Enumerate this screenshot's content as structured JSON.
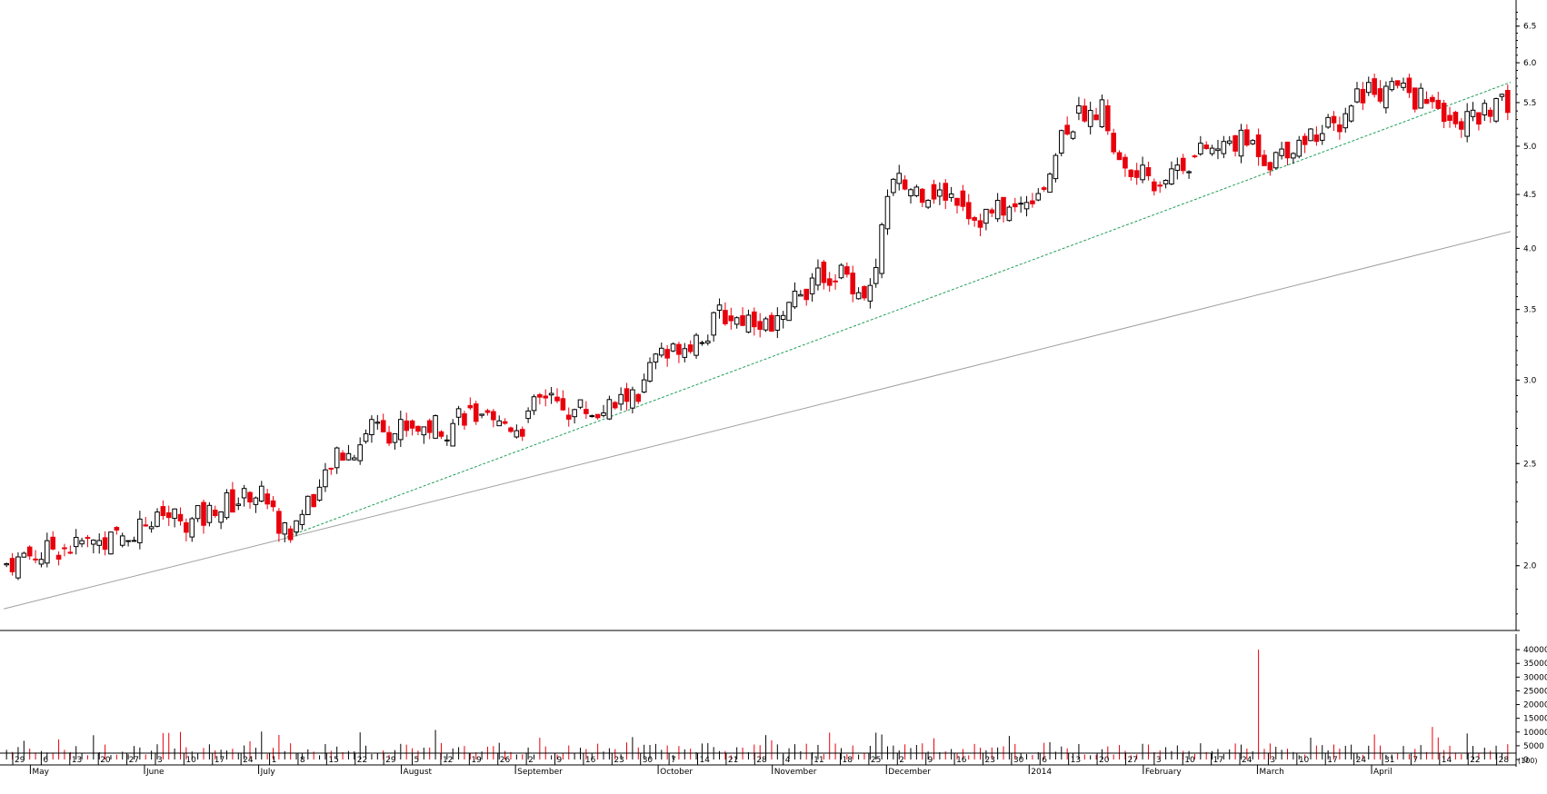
{
  "chart_data": {
    "type": "candlestick",
    "price_axis": {
      "scale": "log",
      "range": [
        1.75,
        6.8
      ],
      "tick_labels": [
        "2.0",
        "2.5",
        "3.0",
        "3.5",
        "4.0",
        "4.5",
        "5.0",
        "5.5",
        "6.0",
        "6.5"
      ],
      "tick_values": [
        2.0,
        2.5,
        3.0,
        3.5,
        4.0,
        4.5,
        5.0,
        5.5,
        6.0,
        6.5
      ]
    },
    "volume_axis": {
      "range": [
        0,
        45000
      ],
      "tick_labels": [
        "0",
        "5000",
        "10000",
        "15000",
        "20000",
        "25000",
        "30000",
        "35000",
        "40000"
      ],
      "tick_values": [
        0,
        5000,
        10000,
        15000,
        20000,
        25000,
        30000,
        35000,
        40000
      ]
    },
    "x_axis": {
      "day_labels": [
        "29",
        "6",
        "13",
        "20",
        "27",
        "3",
        "10",
        "17",
        "24",
        "1",
        "8",
        "15",
        "22",
        "29",
        "5",
        "12",
        "19",
        "26",
        "2",
        "9",
        "16",
        "23",
        "30",
        "7",
        "14",
        "21",
        "28",
        "4",
        "11",
        "18",
        "25",
        "2",
        "9",
        "16",
        "23",
        "30",
        "6",
        "13",
        "20",
        "27",
        "3",
        "10",
        "17",
        "24",
        "3",
        "10",
        "17",
        "24",
        "31",
        "7",
        "14",
        "22",
        "28"
      ],
      "month_labels": [
        "May",
        "June",
        "July",
        "August",
        "September",
        "October",
        "November",
        "December",
        "2014",
        "February",
        "March",
        "April"
      ],
      "corner_label": "(100)"
    },
    "trendlines": [
      {
        "style": "solid-gray",
        "start": {
          "date": "2013-04-26",
          "price": 1.82
        },
        "end": {
          "date": "2014-04-28",
          "price": 4.15
        }
      },
      {
        "style": "dashed-green",
        "start": {
          "date": "2013-07-04",
          "price": 2.13
        },
        "end": {
          "date": "2014-04-28",
          "price": 5.75
        }
      }
    ],
    "colors": {
      "up": "#000000",
      "down": "#e8000c",
      "trend_solid": "#a0a0a0",
      "trend_dashed": "#1f9f58",
      "vol_up": "#000000",
      "vol_down": "#e8000c"
    },
    "weekly_close": [
      {
        "week": "Apr 29",
        "close": 2.05
      },
      {
        "week": "May 6",
        "close": 2.08
      },
      {
        "week": "May 13",
        "close": 2.1
      },
      {
        "week": "May 20",
        "close": 2.12
      },
      {
        "week": "May 27",
        "close": 2.2
      },
      {
        "week": "Jun 3",
        "close": 2.22
      },
      {
        "week": "Jun 10",
        "close": 2.22
      },
      {
        "week": "Jun 17",
        "close": 2.3
      },
      {
        "week": "Jun 24",
        "close": 2.35
      },
      {
        "week": "Jul 1",
        "close": 2.15
      },
      {
        "week": "Jul 8",
        "close": 2.35
      },
      {
        "week": "Jul 15",
        "close": 2.55
      },
      {
        "week": "Jul 22",
        "close": 2.75
      },
      {
        "week": "Jul 29",
        "close": 2.72
      },
      {
        "week": "Aug 5",
        "close": 2.72
      },
      {
        "week": "Aug 12",
        "close": 2.8
      },
      {
        "week": "Aug 19",
        "close": 2.7
      },
      {
        "week": "Aug 26",
        "close": 2.72
      },
      {
        "week": "Sep 2",
        "close": 2.85
      },
      {
        "week": "Sep 9",
        "close": 2.82
      },
      {
        "week": "Sep 16",
        "close": 2.82
      },
      {
        "week": "Sep 23",
        "close": 2.9
      },
      {
        "week": "Sep 30",
        "close": 3.15
      },
      {
        "week": "Oct 7",
        "close": 3.3
      },
      {
        "week": "Oct 14",
        "close": 3.45
      },
      {
        "week": "Oct 21",
        "close": 3.45
      },
      {
        "week": "Oct 28",
        "close": 3.4
      },
      {
        "week": "Nov 4",
        "close": 3.7
      },
      {
        "week": "Nov 11",
        "close": 3.8
      },
      {
        "week": "Nov 18",
        "close": 3.65
      },
      {
        "week": "Nov 25",
        "close": 4.6
      },
      {
        "week": "Dec 2",
        "close": 4.55
      },
      {
        "week": "Dec 9",
        "close": 4.5
      },
      {
        "week": "Dec 16",
        "close": 4.3
      },
      {
        "week": "Dec 23",
        "close": 4.35
      },
      {
        "week": "Dec 30",
        "close": 4.6
      },
      {
        "week": "Jan 6",
        "close": 5.3
      },
      {
        "week": "Jan 13",
        "close": 5.4
      },
      {
        "week": "Jan 20",
        "close": 4.7
      },
      {
        "week": "Jan 27",
        "close": 4.65
      },
      {
        "week": "Feb 3",
        "close": 4.85
      },
      {
        "week": "Feb 10",
        "close": 4.95
      },
      {
        "week": "Feb 17",
        "close": 5.05
      },
      {
        "week": "Feb 24",
        "close": 4.9
      },
      {
        "week": "Mar 3",
        "close": 5.1
      },
      {
        "week": "Mar 10",
        "close": 5.2
      },
      {
        "week": "Mar 17",
        "close": 5.65
      },
      {
        "week": "Mar 24",
        "close": 5.7
      },
      {
        "week": "Mar 31",
        "close": 5.55
      },
      {
        "week": "Apr 7",
        "close": 5.4
      },
      {
        "week": "Apr 14",
        "close": 5.3
      },
      {
        "week": "Apr 22",
        "close": 5.45
      }
    ],
    "volume_spike": {
      "week": "Feb 24",
      "value": 40000
    }
  }
}
